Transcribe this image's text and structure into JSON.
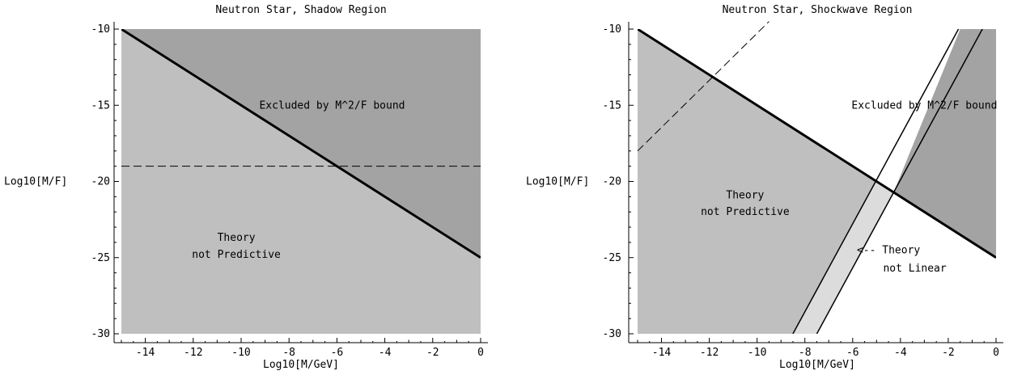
{
  "chart_data": [
    {
      "type": "area",
      "title": "Neutron Star, Shadow Region",
      "xlabel": "Log10[M/GeV]",
      "ylabel": "Log10[M/F]",
      "xlim": [
        -15,
        0
      ],
      "ylim": [
        -30,
        -10
      ],
      "xticks": [
        -14,
        -12,
        -10,
        -8,
        -6,
        -4,
        -2,
        0
      ],
      "yticks": [
        -30,
        -25,
        -20,
        -15,
        -10
      ],
      "colors": {
        "not_predictive": "#bfbfbf",
        "excluded": "#a3a3a3"
      },
      "regions": {
        "not_predictive": [
          [
            -15,
            -10
          ],
          [
            0,
            -25
          ],
          [
            0,
            -30
          ],
          [
            -15,
            -30
          ]
        ],
        "excluded": [
          [
            -15,
            -10
          ],
          [
            0,
            -10
          ],
          [
            0,
            -25
          ]
        ]
      },
      "lines": [
        {
          "style": "thick",
          "points": [
            [
              -15,
              -10
            ],
            [
              0,
              -25
            ]
          ]
        },
        {
          "style": "dashed",
          "points": [
            [
              -15,
              -19
            ],
            [
              0,
              -19
            ]
          ]
        }
      ],
      "annotations": [
        {
          "text": "Excluded by M^2/F bound",
          "x": -6.2,
          "y": -15
        },
        {
          "text": "Theory",
          "x": -10.2,
          "y": -23.7
        },
        {
          "text": "not Predictive",
          "x": -10.2,
          "y": -24.8
        }
      ]
    },
    {
      "type": "area",
      "title": "Neutron Star, Shockwave Region",
      "xlabel": "Log10[M/GeV]",
      "ylabel": "Log10[M/F]",
      "xlim": [
        -15,
        0
      ],
      "ylim": [
        -30,
        -10
      ],
      "xticks": [
        -14,
        -12,
        -10,
        -8,
        -6,
        -4,
        -2,
        0
      ],
      "yticks": [
        -30,
        -25,
        -20,
        -15,
        -10
      ],
      "colors": {
        "not_predictive": "#bfbfbf",
        "excluded": "#a3a3a3",
        "not_linear": "#dcdcdc"
      },
      "regions": {
        "not_predictive": [
          [
            -15,
            -10
          ],
          [
            -5,
            -20
          ],
          [
            -8.5,
            -30
          ],
          [
            -15,
            -30
          ]
        ],
        "excluded": [
          [
            -15,
            -10
          ],
          [
            -1.5,
            -10
          ],
          [
            -4.286,
            -20.714
          ],
          [
            -4.286,
            -20.714
          ],
          [
            0,
            -25
          ],
          [
            0,
            -10
          ]
        ],
        "not_linear": [
          [
            -5,
            -20
          ],
          [
            -4.286,
            -20.714
          ],
          [
            -7.5,
            -30
          ],
          [
            -8.5,
            -30
          ]
        ]
      },
      "lines": [
        {
          "style": "thick",
          "points": [
            [
              -15,
              -10
            ],
            [
              0,
              -25
            ]
          ]
        },
        {
          "style": "thin",
          "points": [
            [
              -8.5,
              -30
            ],
            [
              -1.4,
              -9.5
            ]
          ]
        },
        {
          "style": "thin",
          "points": [
            [
              -7.5,
              -30
            ],
            [
              -0.4,
              -9.5
            ]
          ]
        },
        {
          "style": "dashed",
          "points": [
            [
              -15,
              -18
            ],
            [
              -9.5,
              -9.5
            ]
          ]
        }
      ],
      "annotations": [
        {
          "text": "Excluded by M^2/F bound",
          "x": -3.0,
          "y": -15
        },
        {
          "text": "Theory",
          "x": -10.5,
          "y": -20.9
        },
        {
          "text": "not Predictive",
          "x": -10.5,
          "y": -22.0
        },
        {
          "text": "<-- Theory",
          "x": -4.5,
          "y": -24.5
        },
        {
          "text": "not Linear",
          "x": -3.4,
          "y": -25.7
        }
      ]
    }
  ]
}
